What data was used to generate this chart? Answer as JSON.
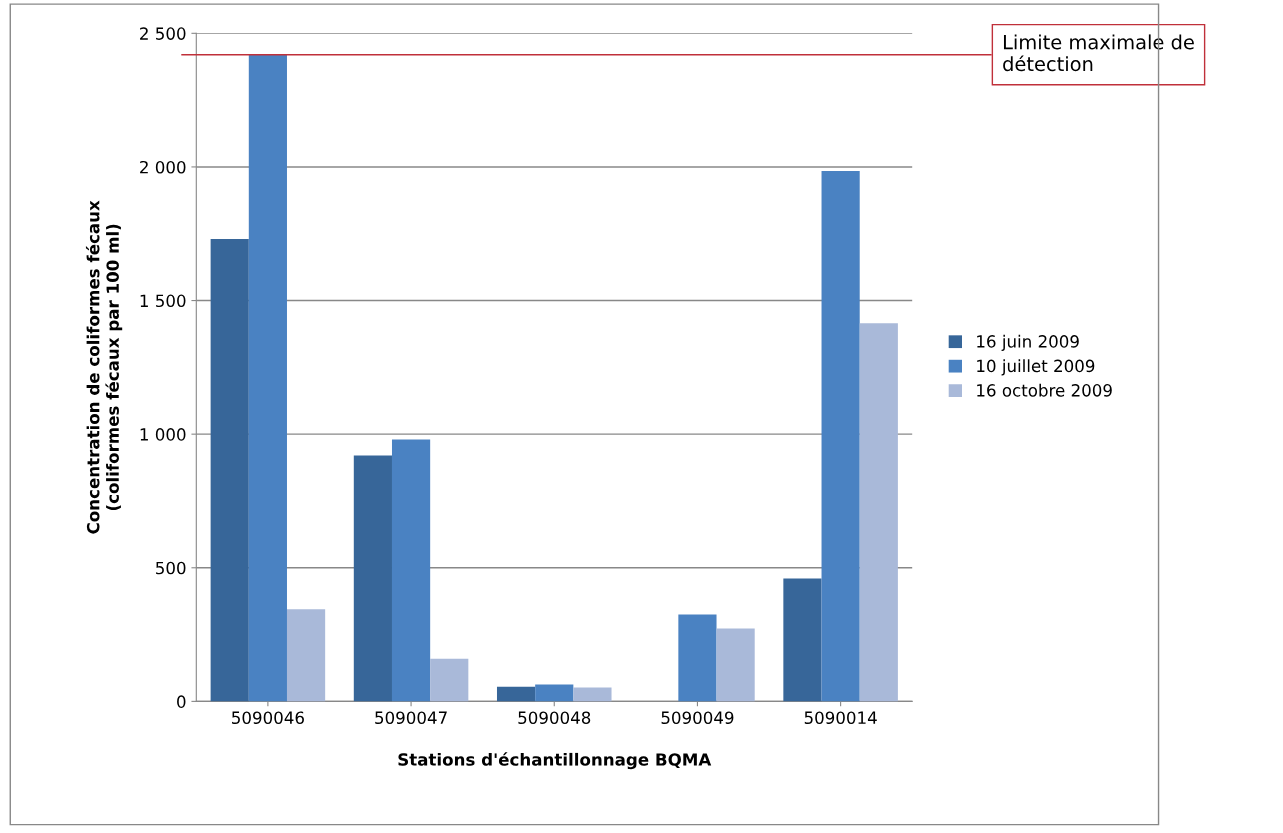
{
  "chart_data": {
    "type": "bar",
    "xlabel": "Stations d'échantillonnage BQMA",
    "ylabel": "Concentration de coliformes fécaux\n(coliformes fécaux par 100 ml)",
    "categories": [
      "5090046",
      "5090047",
      "5090048",
      "5090049",
      "5090014"
    ],
    "series": [
      {
        "name": "16 juin 2009",
        "color": "#376699",
        "values": [
          1730,
          920,
          55,
          null,
          460
        ]
      },
      {
        "name": "10 juillet 2009",
        "color": "#4a82c2",
        "values": [
          2420,
          980,
          63,
          325,
          1985
        ]
      },
      {
        "name": "16 octobre 2009",
        "color": "#a9b9d9",
        "values": [
          345,
          160,
          52,
          273,
          1415
        ]
      }
    ],
    "ylim": [
      0,
      2500
    ],
    "yticks": [
      0,
      500,
      {
        "value": 1000,
        "label": "1 000"
      },
      {
        "value": 1500,
        "label": "1 500"
      },
      {
        "value": 2000,
        "label": "2 000"
      },
      {
        "value": 2500,
        "label": "2 500"
      }
    ],
    "grid": "y",
    "legend": "right",
    "ref_lines": [
      {
        "axis": "y",
        "value": 2420,
        "label": "Limite maximale de\ndétection",
        "color": "#c0303a"
      }
    ]
  }
}
